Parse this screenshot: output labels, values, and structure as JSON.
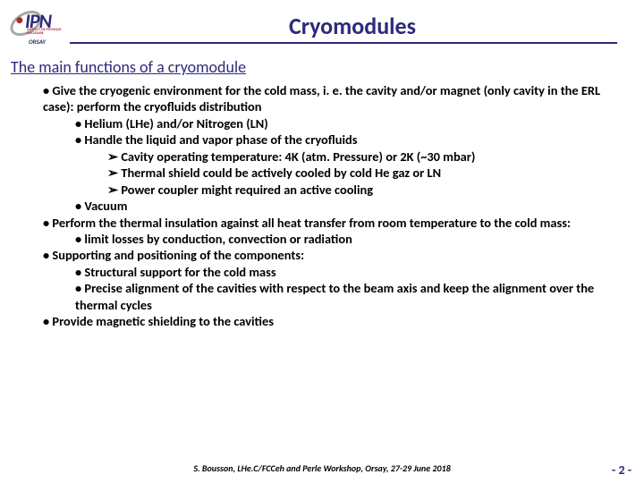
{
  "header": {
    "logo_main": "IPN",
    "logo_sub": "INSTITUT DE PHYSIQUE NUCLÉAIRE",
    "logo_orsay": "ORSAY",
    "title": "Cryomodules"
  },
  "subtitle": "The main functions of a cryomodule",
  "bullets": {
    "b1": "Give the cryogenic environment for the cold mass, i. e. the cavity and/or magnet (only cavity in the ERL case): perform the cryofluids distribution",
    "b1a": "Helium (LHe) and/or Nitrogen (LN)",
    "b1b": "Handle the liquid and vapor phase of the cryofluids",
    "b1b1": "Cavity operating temperature: 4K (atm. Pressure) or 2K (~30 mbar)",
    "b1b2": "Thermal shield could be actively cooled by cold He gaz or LN",
    "b1b3": "Power coupler might required an active cooling",
    "b1c": "Vacuum",
    "b2": "Perform the thermal insulation against all heat transfer from room temperature to the cold mass:",
    "b2a": "limit losses by conduction, convection or radiation",
    "b3": "Supporting and positioning of the components:",
    "b3a": "Structural support for the cold mass",
    "b3b": "Precise alignment of the cavities with respect to the beam axis and keep the alignment over the thermal cycles",
    "b4": "Provide magnetic shielding to the cavities"
  },
  "footer": {
    "credit": "S. Bousson, LHe.C/FCCeh and Perle Workshop, Orsay, 27-29 June 2018",
    "page": "- 2 -"
  },
  "colors": {
    "brand": "#2e2a7a",
    "accent": "#b02a2a",
    "text": "#000000",
    "bg": "#ffffff"
  }
}
